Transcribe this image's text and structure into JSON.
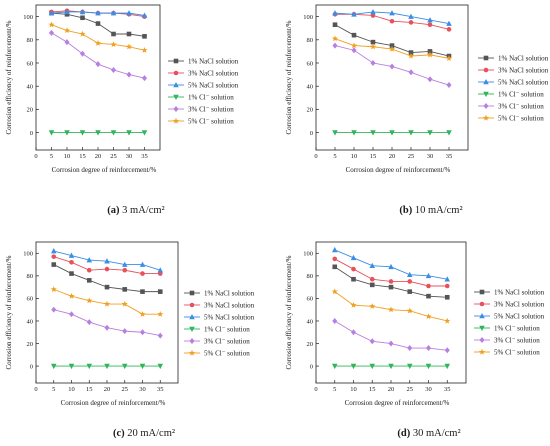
{
  "chart_data": [
    {
      "type": "line",
      "caption_letter": "(a)",
      "caption_rest": " 3 mA/cm²",
      "xlabel": "Corrosion degree of reinforcement/%",
      "ylabel": "Corrosion efficiency of reinforcement/%",
      "x": [
        5,
        10,
        15,
        20,
        25,
        30,
        35
      ],
      "xlim": [
        0,
        40
      ],
      "ylim": [
        -15,
        110
      ],
      "xticks": [
        0,
        5,
        10,
        15,
        20,
        25,
        30,
        35
      ],
      "yticks": [
        0,
        20,
        40,
        60,
        80,
        100
      ],
      "legend_position": "right",
      "series": [
        {
          "name": "1% NaCl solution",
          "color": "#555555",
          "marker": "square",
          "values": [
            103,
            102,
            99,
            94,
            85,
            85,
            83
          ]
        },
        {
          "name": "3% NaCl solution",
          "color": "#e8505b",
          "marker": "circle",
          "values": [
            104,
            105,
            104,
            103,
            103,
            102,
            100
          ]
        },
        {
          "name": "5% NaCl solution",
          "color": "#3a8ee6",
          "marker": "triangle-up",
          "values": [
            103,
            104,
            104,
            103,
            103,
            103,
            101
          ]
        },
        {
          "name": "1%  Cl⁻  solution",
          "color": "#2fb55a",
          "marker": "triangle-down",
          "values": [
            0,
            0,
            0,
            0,
            0,
            0,
            0
          ]
        },
        {
          "name": "3%  Cl⁻  solution",
          "color": "#b77fe0",
          "marker": "diamond",
          "values": [
            86,
            78,
            68,
            59,
            54,
            50,
            47
          ]
        },
        {
          "name": "5%  Cl⁻  solution",
          "color": "#f0a020",
          "marker": "star",
          "values": [
            93,
            88,
            85,
            77,
            76,
            74,
            71
          ]
        }
      ]
    },
    {
      "type": "line",
      "caption_letter": "(b)",
      "caption_rest": " 10 mA/cm²",
      "xlabel": "Corrosion degree of reinforcement/%",
      "ylabel": "Corrosion efficiency of reinforcement/%",
      "x": [
        5,
        10,
        15,
        20,
        25,
        30,
        35
      ],
      "xlim": [
        0,
        40
      ],
      "ylim": [
        -15,
        110
      ],
      "xticks": [
        0,
        5,
        10,
        15,
        20,
        25,
        30,
        35
      ],
      "yticks": [
        0,
        20,
        40,
        60,
        80,
        100
      ],
      "legend_position": "right",
      "series": [
        {
          "name": "1% NaCl solution",
          "color": "#555555",
          "marker": "square",
          "values": [
            93,
            84,
            78,
            75,
            69,
            70,
            66
          ]
        },
        {
          "name": "3% NaCl solution",
          "color": "#e8505b",
          "marker": "circle",
          "values": [
            102,
            102,
            101,
            96,
            95,
            93,
            89
          ]
        },
        {
          "name": "5% NaCl solution",
          "color": "#3a8ee6",
          "marker": "triangle-up",
          "values": [
            103,
            102,
            104,
            103,
            100,
            97,
            94
          ]
        },
        {
          "name": "1%  Cl⁻  solution",
          "color": "#2fb55a",
          "marker": "triangle-down",
          "values": [
            0,
            0,
            0,
            0,
            0,
            0,
            0
          ]
        },
        {
          "name": "3%  Cl⁻  solution",
          "color": "#b77fe0",
          "marker": "diamond",
          "values": [
            75,
            71,
            60,
            57,
            52,
            46,
            41
          ]
        },
        {
          "name": "5%  Cl⁻  solution",
          "color": "#f0a020",
          "marker": "star",
          "values": [
            81,
            75,
            74,
            72,
            66,
            67,
            64
          ]
        }
      ]
    },
    {
      "type": "line",
      "caption_letter": "(c)",
      "caption_rest": " 20 mA/cm²",
      "xlabel": "Corrosion degree of reinforcement/%",
      "ylabel": "Corrosion efficiency of reinforcement/%",
      "x": [
        5,
        10,
        15,
        20,
        25,
        30,
        35
      ],
      "xlim": [
        0,
        40
      ],
      "ylim": [
        -15,
        110
      ],
      "xticks": [
        0,
        5,
        10,
        15,
        20,
        25,
        30,
        35
      ],
      "yticks": [
        0,
        20,
        40,
        60,
        80,
        100
      ],
      "legend_position": "right",
      "series": [
        {
          "name": "1% NaCl solution",
          "color": "#555555",
          "marker": "square",
          "values": [
            90,
            82,
            76,
            70,
            68,
            66,
            66
          ]
        },
        {
          "name": "3% NaCl solution",
          "color": "#e8505b",
          "marker": "circle",
          "values": [
            97,
            92,
            85,
            86,
            85,
            82,
            82
          ]
        },
        {
          "name": "5% NaCl solution",
          "color": "#3a8ee6",
          "marker": "triangle-up",
          "values": [
            102,
            98,
            94,
            93,
            90,
            90,
            85
          ]
        },
        {
          "name": "1%  Cl⁻  solution",
          "color": "#2fb55a",
          "marker": "triangle-down",
          "values": [
            0,
            0,
            0,
            0,
            0,
            0,
            0
          ]
        },
        {
          "name": "3%  Cl⁻  solution",
          "color": "#b77fe0",
          "marker": "diamond",
          "values": [
            50,
            46,
            39,
            34,
            31,
            30,
            27
          ]
        },
        {
          "name": "5%  Cl⁻  solution",
          "color": "#f0a020",
          "marker": "star",
          "values": [
            68,
            62,
            58,
            55,
            55,
            46,
            46
          ]
        }
      ]
    },
    {
      "type": "line",
      "caption_letter": "(d)",
      "caption_rest": " 30 mA/cm²",
      "xlabel": "Corrosion degree of reinforcement/%",
      "ylabel": "Corrosion efficiency of reinforcement/%",
      "x": [
        5,
        10,
        15,
        20,
        25,
        30,
        35
      ],
      "xlim": [
        0,
        40
      ],
      "ylim": [
        -15,
        110
      ],
      "xticks": [
        0,
        5,
        10,
        15,
        20,
        25,
        30,
        35
      ],
      "yticks": [
        0,
        20,
        40,
        60,
        80,
        100
      ],
      "legend_position": "right",
      "series": [
        {
          "name": "1% NaCl solution",
          "color": "#555555",
          "marker": "square",
          "values": [
            88,
            77,
            72,
            70,
            66,
            62,
            61
          ]
        },
        {
          "name": "3% NaCl solution",
          "color": "#e8505b",
          "marker": "circle",
          "values": [
            95,
            86,
            77,
            75,
            75,
            71,
            71
          ]
        },
        {
          "name": "5% NaCl solution",
          "color": "#3a8ee6",
          "marker": "triangle-up",
          "values": [
            103,
            96,
            89,
            88,
            81,
            80,
            77
          ]
        },
        {
          "name": "1%  Cl⁻  solution",
          "color": "#2fb55a",
          "marker": "triangle-down",
          "values": [
            0,
            0,
            0,
            0,
            0,
            0,
            0
          ]
        },
        {
          "name": "3%  Cl⁻  solution",
          "color": "#b77fe0",
          "marker": "diamond",
          "values": [
            40,
            30,
            22,
            20,
            16,
            16,
            14
          ]
        },
        {
          "name": "5%  Cl⁻  solution",
          "color": "#f0a020",
          "marker": "star",
          "values": [
            66,
            54,
            53,
            50,
            49,
            44,
            40
          ]
        }
      ]
    }
  ]
}
